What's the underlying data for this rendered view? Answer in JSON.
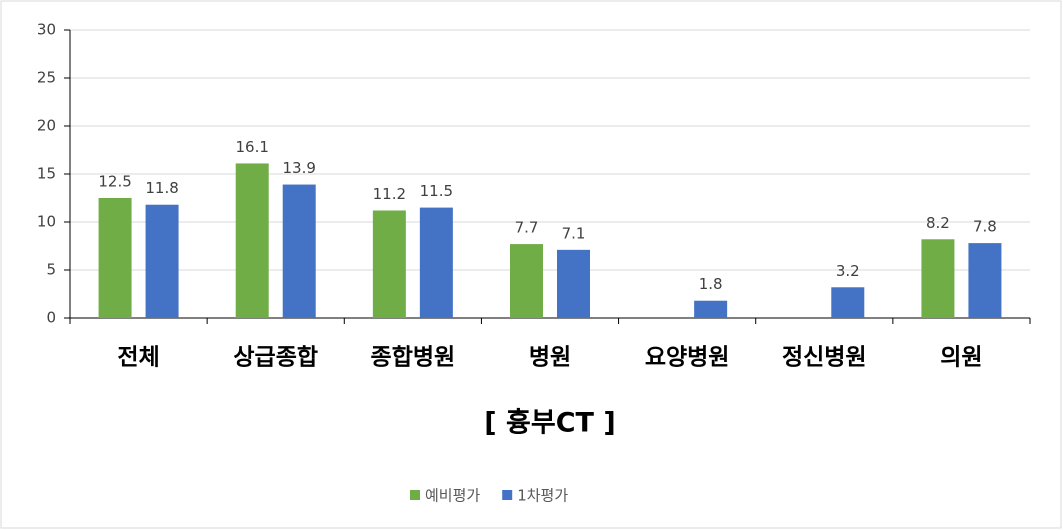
{
  "chart_data": {
    "type": "bar",
    "x_label": "[ 흉부CT ]",
    "categories": [
      "전체",
      "상급종합",
      "종합병원",
      "병원",
      "요양병원",
      "정신병원",
      "의원"
    ],
    "series": [
      {
        "name": "예비평가",
        "color": "#70ad47",
        "values": [
          12.5,
          16.1,
          11.2,
          7.7,
          null,
          null,
          8.2
        ]
      },
      {
        "name": "1차평가",
        "color": "#4472c4",
        "values": [
          11.8,
          13.9,
          11.5,
          7.1,
          1.8,
          3.2,
          7.8
        ]
      }
    ],
    "ylim": [
      0,
      30
    ],
    "yticks": [
      0,
      5,
      10,
      15,
      20,
      25,
      30
    ],
    "grid": true,
    "legend": "bottom"
  }
}
